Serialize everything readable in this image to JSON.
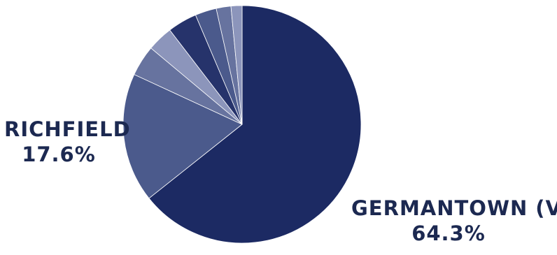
{
  "chart_data": {
    "type": "pie",
    "slices": [
      {
        "label": "GERMANTOWN (V)",
        "value": 64.3,
        "display_value": "64.3%",
        "color": "#1c2a63"
      },
      {
        "label": "RICHFIELD",
        "value": 17.6,
        "display_value": "17.6%",
        "color": "#4b5a8c"
      },
      {
        "label": "",
        "value": 4.2,
        "color": "#67739f"
      },
      {
        "label": "",
        "value": 3.5,
        "color": "#8c95bb"
      },
      {
        "label": "",
        "value": 4.0,
        "color": "#26336b"
      },
      {
        "label": "",
        "value": 2.9,
        "color": "#4b5a8c"
      },
      {
        "label": "",
        "value": 2.0,
        "color": "#67739f"
      },
      {
        "label": "",
        "value": 1.5,
        "color": "#8c95bb"
      }
    ],
    "labeled_slices": [
      {
        "name": "RICHFIELD",
        "value_text": "17.6%"
      },
      {
        "name": "GERMANTOWN (V)",
        "value_text": "64.3%"
      }
    ]
  }
}
